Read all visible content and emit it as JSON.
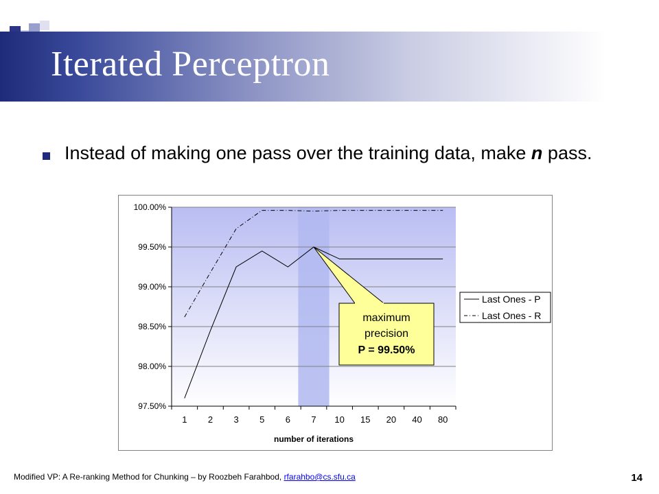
{
  "slide": {
    "title": "Iterated Perceptron",
    "bullet_main": "Instead of making one pass over the training data, make",
    "bullet_n": "n",
    "bullet_rest": " pass.",
    "footer_text": "Modified VP: A Re-ranking Method for Chunking – by Roozbeh Farahbod, ",
    "footer_email": "rfarahbo@cs.sfu.ca",
    "page_number": "14",
    "theme_color": "#1f2a7a"
  },
  "chart_data": {
    "type": "line",
    "categories": [
      "1",
      "2",
      "3",
      "5",
      "6",
      "7",
      "10",
      "15",
      "20",
      "40",
      "80"
    ],
    "series": [
      {
        "name": "Last Ones - P",
        "style": "solid",
        "values": [
          97.6,
          98.45,
          99.25,
          99.45,
          99.25,
          99.5,
          99.35,
          99.35,
          99.35,
          99.35,
          99.35
        ]
      },
      {
        "name": "Last Ones - R",
        "style": "dash-dot",
        "values": [
          98.62,
          99.18,
          99.73,
          99.96,
          99.96,
          99.95,
          99.96,
          99.96,
          99.96,
          99.96,
          99.96
        ]
      }
    ],
    "y_ticks": [
      "97.50%",
      "98.00%",
      "98.50%",
      "99.00%",
      "99.50%",
      "100.00%"
    ],
    "ylim": [
      97.5,
      100.0
    ],
    "xlabel": "number of iterations",
    "ylabel": "",
    "legend_position": "right",
    "highlight_category": "7",
    "plot_bg_top": "#b9bdf2",
    "plot_bg_bottom": "#ffffff",
    "highlight_color": "#b0b8f0",
    "callout": {
      "line1": "maximum",
      "line2": "precision",
      "line3": "P = 99.50%",
      "bg": "#ffff99"
    }
  }
}
